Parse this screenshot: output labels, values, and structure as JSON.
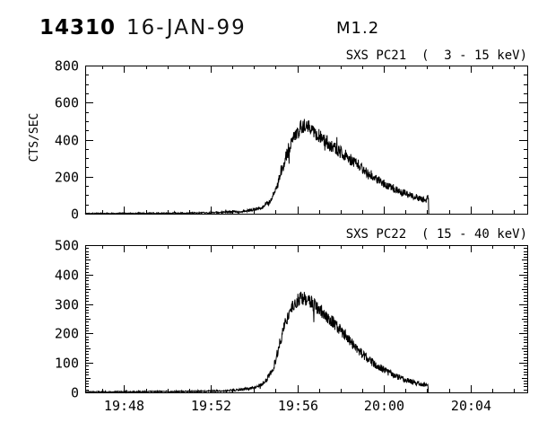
{
  "header": {
    "event_id": "14310",
    "date": "16-JAN-99",
    "flare_class": "M1.2"
  },
  "ylabel": "CTS/SEC",
  "colors": {
    "foreground": "#000000",
    "background": "#ffffff"
  },
  "xaxis": {
    "tick_labels": [
      "19:48",
      "19:52",
      "19:56",
      "20:00",
      "20:04"
    ],
    "tick_minutes": [
      2,
      6,
      10,
      14,
      18
    ],
    "minor_step_minutes": 1,
    "t_start": 0.2,
    "t_end": 20.62,
    "time_reference": "19:46"
  },
  "chart_data": [
    {
      "type": "line",
      "title": "SXS PC21  (  3 - 15 keV)",
      "ylabel": "CTS/SEC",
      "ylim": [
        0,
        800
      ],
      "ytick_step": 200,
      "y_minor_step": 50,
      "grid": false,
      "legend": "none",
      "peak_value": 500,
      "peak_time": "19:56:20",
      "data_end_minutes": 16.07,
      "noise_coeff": 1.9,
      "seed": 1337,
      "envelope_t_v": [
        [
          0.2,
          2
        ],
        [
          1.5,
          2
        ],
        [
          3,
          2.5
        ],
        [
          4.5,
          3
        ],
        [
          5.5,
          4
        ],
        [
          6.3,
          6
        ],
        [
          7.0,
          10
        ],
        [
          7.6,
          15
        ],
        [
          8.0,
          22
        ],
        [
          8.35,
          35
        ],
        [
          8.65,
          55
        ],
        [
          8.95,
          110
        ],
        [
          9.2,
          200
        ],
        [
          9.45,
          300
        ],
        [
          9.7,
          385
        ],
        [
          9.95,
          432
        ],
        [
          10.2,
          468
        ],
        [
          10.42,
          485
        ],
        [
          10.65,
          462
        ],
        [
          11.0,
          425
        ],
        [
          11.25,
          395
        ],
        [
          11.7,
          355
        ],
        [
          12.05,
          330
        ],
        [
          12.5,
          287
        ],
        [
          12.85,
          260
        ],
        [
          13.3,
          218
        ],
        [
          13.7,
          185
        ],
        [
          14.1,
          158
        ],
        [
          14.55,
          132
        ],
        [
          15.0,
          110
        ],
        [
          15.35,
          95
        ],
        [
          15.7,
          80
        ],
        [
          15.95,
          72
        ],
        [
          16.04,
          88
        ],
        [
          16.07,
          85
        ]
      ]
    },
    {
      "type": "line",
      "title": "SXS PC22  ( 15 - 40 keV)",
      "ylabel": "",
      "ylim": [
        0,
        500
      ],
      "ytick_step": 100,
      "y_minor_step": 10,
      "y_medium_step": 50,
      "grid": false,
      "legend": "none",
      "peak_value": 340,
      "peak_time": "19:56:10",
      "data_end_minutes": 16.05,
      "noise_coeff": 1.35,
      "seed": 777,
      "envelope_t_v": [
        [
          0.2,
          2
        ],
        [
          1.5,
          2
        ],
        [
          3,
          2.5
        ],
        [
          4.5,
          3
        ],
        [
          5.8,
          4
        ],
        [
          6.8,
          6
        ],
        [
          7.5,
          10
        ],
        [
          8.0,
          16
        ],
        [
          8.35,
          28
        ],
        [
          8.65,
          50
        ],
        [
          8.95,
          95
        ],
        [
          9.2,
          170
        ],
        [
          9.45,
          238
        ],
        [
          9.7,
          282
        ],
        [
          9.95,
          308
        ],
        [
          10.2,
          322
        ],
        [
          10.45,
          316
        ],
        [
          10.7,
          300
        ],
        [
          11.2,
          270
        ],
        [
          11.6,
          242
        ],
        [
          12.0,
          212
        ],
        [
          12.4,
          178
        ],
        [
          12.85,
          140
        ],
        [
          13.3,
          110
        ],
        [
          13.75,
          88
        ],
        [
          14.2,
          68
        ],
        [
          14.65,
          52
        ],
        [
          15.1,
          40
        ],
        [
          15.5,
          31
        ],
        [
          15.8,
          26
        ],
        [
          16.0,
          24
        ],
        [
          16.05,
          30
        ]
      ]
    }
  ]
}
